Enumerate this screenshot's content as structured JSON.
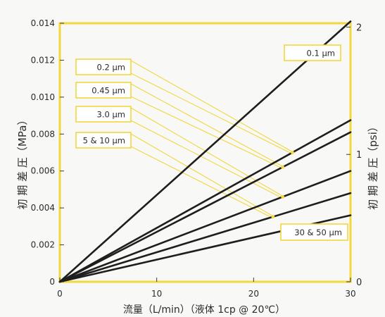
{
  "chart_data": {
    "type": "line",
    "xlabel": "流量（L/min）（液体 1cp @ 20℃）",
    "ylabel_left": "初 期 差 圧（MPa）",
    "ylabel_right": "初 期 差 圧（psi）",
    "xlim": [
      0,
      30
    ],
    "ylim": [
      0,
      0.014
    ],
    "ylim_right": [
      0,
      2.03
    ],
    "x_ticks": [
      "0",
      "10",
      "20",
      "30"
    ],
    "y_ticks": [
      "0",
      "0.002",
      "0.004",
      "0.006",
      "0.008",
      "0.010",
      "0.012",
      "0.014"
    ],
    "y_ticks_right": [
      "0",
      "1",
      "2"
    ],
    "grid": false,
    "frame_color": "#f2d73d",
    "line_color": "#1e1e1e",
    "series": [
      {
        "name": "0.1 μm",
        "x": [
          0,
          30
        ],
        "y": [
          0,
          0.0141
        ]
      },
      {
        "name": "0.2 μm",
        "x": [
          0,
          30
        ],
        "y": [
          0,
          0.00875
        ]
      },
      {
        "name": "0.45 μm",
        "x": [
          0,
          30
        ],
        "y": [
          0,
          0.0081
        ]
      },
      {
        "name": "3.0 μm",
        "x": [
          0,
          30
        ],
        "y": [
          0,
          0.006
        ]
      },
      {
        "name": "5 & 10 μm",
        "x": [
          0,
          30
        ],
        "y": [
          0,
          0.0048
        ]
      },
      {
        "name": "30 & 50 μm",
        "x": [
          0,
          30
        ],
        "y": [
          0,
          0.0036
        ]
      }
    ],
    "annotations": [
      {
        "text": "0.1 μm",
        "series": 0,
        "leader": false
      },
      {
        "text": "0.2 μm",
        "series": 1,
        "leader": true,
        "at_x": 24
      },
      {
        "text": "0.45 μm",
        "series": 2,
        "leader": true,
        "at_x": 23
      },
      {
        "text": "3.0 μm",
        "series": 3,
        "leader": true,
        "at_x": 23
      },
      {
        "text": "5 & 10 μm",
        "series": 4,
        "leader": true,
        "at_x": 22
      },
      {
        "text": "30 & 50 μm",
        "series": 5,
        "leader": false
      }
    ]
  }
}
